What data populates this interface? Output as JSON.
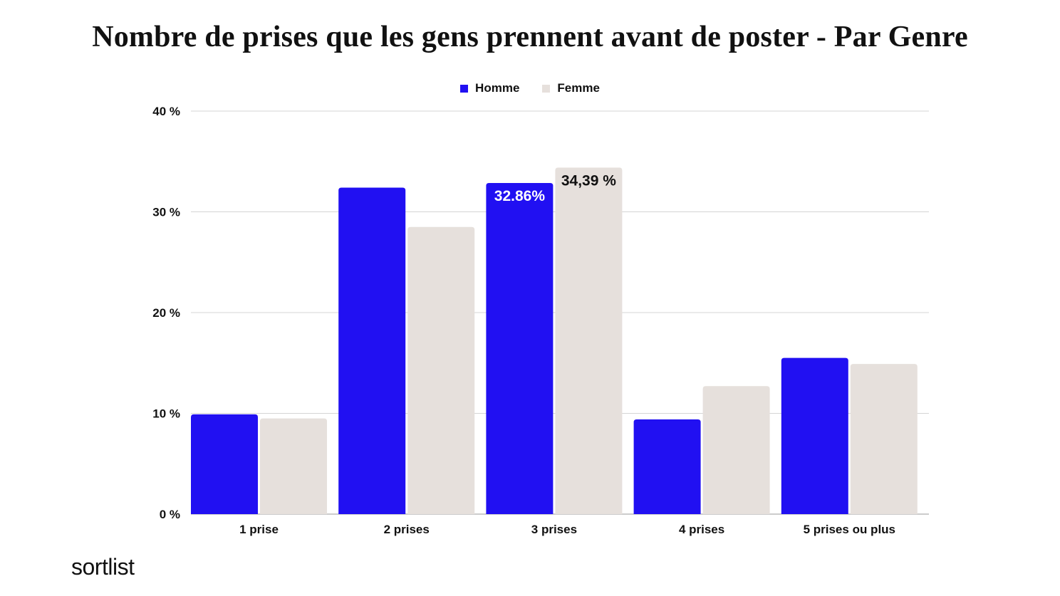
{
  "chart_data": {
    "type": "bar",
    "title": "Nombre de prises que les gens prennent avant de poster - Par Genre",
    "categories": [
      "1 prise",
      "2 prises",
      "3 prises",
      "4 prises",
      "5 prises ou plus"
    ],
    "series": [
      {
        "name": "Homme",
        "color": "#2110f2",
        "values": [
          9.9,
          32.4,
          32.86,
          9.4,
          15.5
        ],
        "data_labels": [
          "",
          "",
          "32.86%",
          "",
          ""
        ],
        "label_color": "#ffffff"
      },
      {
        "name": "Femme",
        "color": "#e6e0dc",
        "values": [
          9.5,
          28.5,
          34.39,
          12.7,
          14.9
        ],
        "data_labels": [
          "",
          "",
          "34,39 %",
          "",
          ""
        ],
        "label_color": "#111111"
      }
    ],
    "ylim": [
      0,
      40
    ],
    "yticks": [
      0,
      10,
      20,
      30,
      40
    ],
    "ytick_labels": [
      "0 %",
      "10 %",
      "20 %",
      "30 %",
      "40 %"
    ],
    "xlabel": "",
    "ylabel": "",
    "grid": true,
    "legend": "top-center"
  },
  "brand": {
    "logo_text": "sortlist"
  }
}
